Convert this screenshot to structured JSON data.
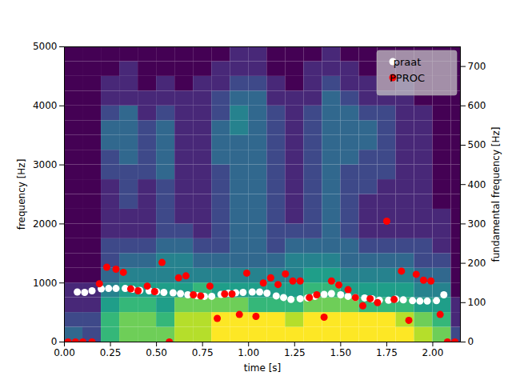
{
  "chart_data": {
    "type": "scatter",
    "xlabel": "time [s]",
    "ylabel": "frequency [Hz]",
    "y2label": "fundamental frequency [Hz]",
    "xlim": [
      0,
      2.15
    ],
    "xticks": [
      {
        "value": 0,
        "label": "0.00"
      },
      {
        "value": 0.25,
        "label": "0.25"
      },
      {
        "value": 0.5,
        "label": "0.50"
      },
      {
        "value": 0.75,
        "label": "0.75"
      },
      {
        "value": 1,
        "label": "1.00"
      },
      {
        "value": 1.25,
        "label": "1.25"
      },
      {
        "value": 1.5,
        "label": "1.50"
      },
      {
        "value": 1.75,
        "label": "1.75"
      },
      {
        "value": 2,
        "label": "2.00"
      }
    ],
    "ylim": [
      0,
      5000
    ],
    "yticks": [
      0,
      1000,
      2000,
      3000,
      4000,
      5000
    ],
    "y2lim": [
      0,
      750
    ],
    "y2ticks": [
      0,
      100,
      200,
      300,
      400,
      500,
      600,
      700
    ],
    "legend": "upper right",
    "spectrogram": {
      "time_edges": [
        0,
        0.1,
        0.2,
        0.3,
        0.4,
        0.5,
        0.6,
        0.7,
        0.8,
        0.9,
        1.0,
        1.1,
        1.2,
        1.3,
        1.4,
        1.5,
        1.6,
        1.7,
        1.8,
        1.9,
        2.0,
        2.1,
        2.15
      ],
      "frequency_edges": [
        0,
        250,
        500,
        750,
        1000,
        1250,
        1500,
        1750,
        2000,
        2250,
        2500,
        2750,
        3000,
        3250,
        3500,
        3750,
        4000,
        4250,
        4500,
        4750,
        5000
      ],
      "values": [
        [
          3,
          2,
          6,
          7,
          7,
          7,
          8,
          8,
          9,
          9,
          9,
          9,
          9,
          9,
          9,
          9,
          9,
          9,
          9,
          8,
          7,
          2
        ],
        [
          2,
          2,
          6,
          7,
          7,
          6,
          8,
          8,
          9,
          9,
          9,
          9,
          8,
          9,
          9,
          9,
          9,
          9,
          8,
          7,
          6,
          1
        ],
        [
          1,
          1,
          5,
          6,
          6,
          5,
          7,
          7,
          7,
          7,
          6,
          6,
          6,
          7,
          7,
          7,
          6,
          6,
          6,
          5,
          5,
          1
        ],
        [
          1,
          1,
          4,
          5,
          5,
          5,
          5,
          6,
          5,
          5,
          5,
          5,
          5,
          6,
          6,
          5,
          5,
          5,
          5,
          4,
          4,
          0
        ],
        [
          0,
          0,
          3,
          4,
          4,
          4,
          4,
          4,
          4,
          4,
          4,
          4,
          4,
          5,
          5,
          4,
          4,
          4,
          4,
          3,
          3,
          0
        ],
        [
          0,
          0,
          2,
          3,
          3,
          4,
          4,
          3,
          3,
          3,
          3,
          3,
          4,
          4,
          4,
          3,
          3,
          3,
          3,
          2,
          2,
          0
        ],
        [
          0,
          0,
          2,
          2,
          2,
          3,
          3,
          2,
          2,
          3,
          3,
          2,
          3,
          3,
          3,
          3,
          2,
          2,
          2,
          2,
          1,
          0
        ],
        [
          0,
          0,
          1,
          1,
          1,
          2,
          2,
          1,
          2,
          3,
          3,
          2,
          2,
          2,
          3,
          2,
          1,
          1,
          1,
          1,
          1,
          0
        ],
        [
          0,
          0,
          1,
          1,
          1,
          2,
          1,
          1,
          2,
          3,
          3,
          2,
          1,
          2,
          3,
          2,
          1,
          1,
          1,
          1,
          1,
          0
        ],
        [
          0,
          0,
          1,
          2,
          1,
          2,
          1,
          1,
          2,
          3,
          3,
          2,
          1,
          2,
          3,
          2,
          1,
          1,
          1,
          1,
          0,
          0
        ],
        [
          0,
          0,
          1,
          2,
          1,
          2,
          1,
          1,
          2,
          3,
          3,
          2,
          1,
          2,
          3,
          2,
          2,
          1,
          1,
          1,
          0,
          0
        ],
        [
          0,
          0,
          2,
          2,
          2,
          3,
          1,
          1,
          2,
          3,
          3,
          2,
          1,
          2,
          3,
          2,
          2,
          2,
          1,
          1,
          0,
          0
        ],
        [
          0,
          0,
          2,
          3,
          2,
          3,
          1,
          1,
          3,
          3,
          3,
          2,
          1,
          2,
          3,
          3,
          2,
          2,
          1,
          1,
          0,
          0
        ],
        [
          0,
          0,
          3,
          3,
          2,
          3,
          1,
          1,
          3,
          3,
          3,
          2,
          1,
          2,
          3,
          3,
          3,
          2,
          1,
          1,
          0,
          0
        ],
        [
          0,
          0,
          3,
          3,
          2,
          3,
          1,
          1,
          3,
          4,
          3,
          2,
          1,
          2,
          3,
          3,
          3,
          2,
          1,
          1,
          0,
          0
        ],
        [
          0,
          0,
          2,
          3,
          1,
          2,
          1,
          1,
          2,
          4,
          3,
          2,
          1,
          2,
          3,
          3,
          2,
          2,
          1,
          1,
          0,
          0
        ],
        [
          0,
          0,
          1,
          1,
          1,
          1,
          1,
          1,
          2,
          3,
          3,
          1,
          1,
          1,
          3,
          2,
          1,
          1,
          1,
          0,
          0,
          0
        ],
        [
          0,
          0,
          1,
          1,
          0,
          1,
          0,
          1,
          1,
          2,
          2,
          1,
          0,
          1,
          2,
          1,
          1,
          0,
          1,
          0,
          0,
          0
        ],
        [
          0,
          0,
          0,
          1,
          0,
          0,
          0,
          0,
          1,
          1,
          1,
          0,
          0,
          1,
          1,
          1,
          0,
          0,
          0,
          0,
          0,
          0
        ],
        [
          0,
          0,
          0,
          0,
          0,
          0,
          0,
          0,
          0,
          1,
          1,
          0,
          0,
          0,
          1,
          0,
          0,
          0,
          0,
          0,
          0,
          0
        ]
      ]
    },
    "series": [
      {
        "name": "praat",
        "color": "#ffffff",
        "marker": "circle",
        "axis": "y2",
        "x": [
          0.07,
          0.11,
          0.15,
          0.2,
          0.24,
          0.28,
          0.33,
          0.37,
          0.41,
          0.46,
          0.5,
          0.54,
          0.59,
          0.63,
          0.67,
          0.72,
          0.76,
          0.8,
          0.85,
          0.89,
          0.93,
          0.97,
          1.02,
          1.06,
          1.1,
          1.15,
          1.19,
          1.23,
          1.28,
          1.32,
          1.36,
          1.41,
          1.45,
          1.5,
          1.54,
          1.58,
          1.63,
          1.67,
          1.71,
          1.76,
          1.8,
          1.84,
          1.89,
          1.93,
          1.97,
          2.02,
          2.06
        ],
        "values": [
          127,
          126,
          130,
          135,
          136,
          136,
          136,
          134,
          131,
          130,
          128,
          126,
          125,
          123,
          120,
          118,
          116,
          116,
          121,
          124,
          125,
          126,
          127,
          127,
          124,
          117,
          113,
          108,
          110,
          112,
          116,
          121,
          123,
          120,
          116,
          113,
          112,
          110,
          106,
          106,
          109,
          107,
          105,
          104,
          104,
          105,
          120
        ]
      },
      {
        "name": "PPROC",
        "color": "#ff0000",
        "marker": "circle",
        "axis": "y2",
        "x": [
          0.02,
          0.06,
          0.1,
          0.15,
          0.19,
          0.23,
          0.28,
          0.32,
          0.36,
          0.4,
          0.45,
          0.49,
          0.53,
          0.57,
          0.62,
          0.66,
          0.7,
          0.74,
          0.79,
          0.83,
          0.87,
          0.91,
          0.95,
          0.99,
          1.04,
          1.08,
          1.12,
          1.16,
          1.2,
          1.24,
          1.28,
          1.33,
          1.37,
          1.41,
          1.45,
          1.49,
          1.54,
          1.58,
          1.62,
          1.66,
          1.7,
          1.75,
          1.79,
          1.83,
          1.87,
          1.91,
          1.95,
          1.99,
          2.04,
          2.08,
          2.12
        ],
        "values": [
          0,
          0,
          0,
          0,
          148,
          190,
          185,
          177,
          135,
          130,
          142,
          128,
          202,
          0,
          163,
          168,
          120,
          117,
          142,
          60,
          122,
          122,
          70,
          175,
          65,
          150,
          163,
          146,
          173,
          155,
          155,
          113,
          120,
          63,
          155,
          145,
          133,
          113,
          92,
          110,
          100,
          307,
          108,
          180,
          55,
          172,
          157,
          155,
          70,
          0,
          0
        ]
      }
    ]
  }
}
